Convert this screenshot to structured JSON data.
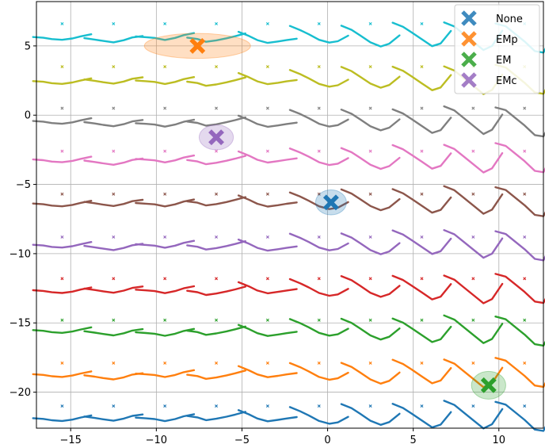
{
  "chart_data": {
    "type": "line",
    "title": "",
    "xlabel": "",
    "ylabel": "",
    "xlim": [
      -17,
      12.6
    ],
    "ylim": [
      -22.6,
      8.2
    ],
    "xticks": [
      -15,
      -10,
      -5,
      0,
      5,
      10
    ],
    "yticks": [
      -20,
      -15,
      -10,
      -5,
      0,
      5
    ],
    "xtick_labels": [
      "−15",
      "−10",
      "−5",
      "0",
      "5",
      "10"
    ],
    "ytick_labels": [
      "−20",
      "−15",
      "−10",
      "−5",
      "0",
      "5"
    ],
    "grid": true,
    "legend_position": "upper right",
    "grid_x_centers": [
      -15.5,
      -12.5,
      -9.5,
      -6.5,
      -3.5,
      -0.5,
      2.5,
      5.5,
      8.5,
      11.5
    ],
    "row_colors": [
      "#1f77b4",
      "#ff7f0e",
      "#2ca02c",
      "#d62728",
      "#9467bd",
      "#8c564b",
      "#e377c2",
      "#7f7f7f",
      "#bcbd22",
      "#17becf"
    ],
    "row_baselines": [
      -21.8,
      -18.7,
      -15.6,
      -12.6,
      -9.4,
      -6.3,
      -3.2,
      -0.5,
      2.5,
      5.6
    ],
    "row_marker_y": [
      -21.0,
      -17.9,
      -14.8,
      -11.8,
      -8.8,
      -5.7,
      -2.6,
      0.5,
      3.5,
      6.6
    ],
    "segment_dx": [
      -1.7,
      -1.1,
      -0.6,
      0,
      0.6,
      1.1,
      1.7
    ],
    "segment_shapes": [
      [
        0,
        -0.05,
        -0.15,
        -0.2,
        -0.1,
        0.05,
        0.2
      ],
      [
        0,
        -0.1,
        -0.2,
        -0.3,
        -0.15,
        0.05,
        0.15
      ],
      [
        0,
        -0.05,
        -0.1,
        -0.25,
        -0.1,
        0.1,
        0.25
      ],
      [
        0,
        -0.1,
        -0.3,
        -0.2,
        -0.05,
        0.1,
        0.3
      ],
      [
        0.5,
        0.2,
        -0.1,
        -0.3,
        -0.2,
        -0.1,
        0
      ],
      [
        0.8,
        0.5,
        0.2,
        -0.2,
        -0.4,
        -0.3,
        0.1
      ],
      [
        0.9,
        0.6,
        0.2,
        -0.3,
        -0.6,
        -0.4,
        0.2
      ],
      [
        1.0,
        0.7,
        0.3,
        -0.2,
        -0.7,
        -0.5,
        0.4
      ],
      [
        1.1,
        0.8,
        0.3,
        -0.3,
        -0.9,
        -0.6,
        0.5
      ],
      [
        1.1,
        0.9,
        0.4,
        -0.2,
        -0.9,
        -1.0,
        0.4
      ]
    ],
    "series": [
      {
        "name": "None",
        "x": 0.2,
        "y": -6.3,
        "color": "#1f77b4",
        "ellipse": [
          0.9,
          0.9
        ]
      },
      {
        "name": "EMp",
        "x": -7.6,
        "y": 5.0,
        "color": "#ff7f0e",
        "ellipse": [
          3.1,
          0.9
        ]
      },
      {
        "name": "EM",
        "x": 9.4,
        "y": -19.5,
        "color": "#2ca02c",
        "ellipse": [
          1.0,
          1.0
        ]
      },
      {
        "name": "EMc",
        "x": -6.5,
        "y": -1.6,
        "color": "#9467bd",
        "ellipse": [
          1.0,
          0.9
        ]
      }
    ]
  }
}
